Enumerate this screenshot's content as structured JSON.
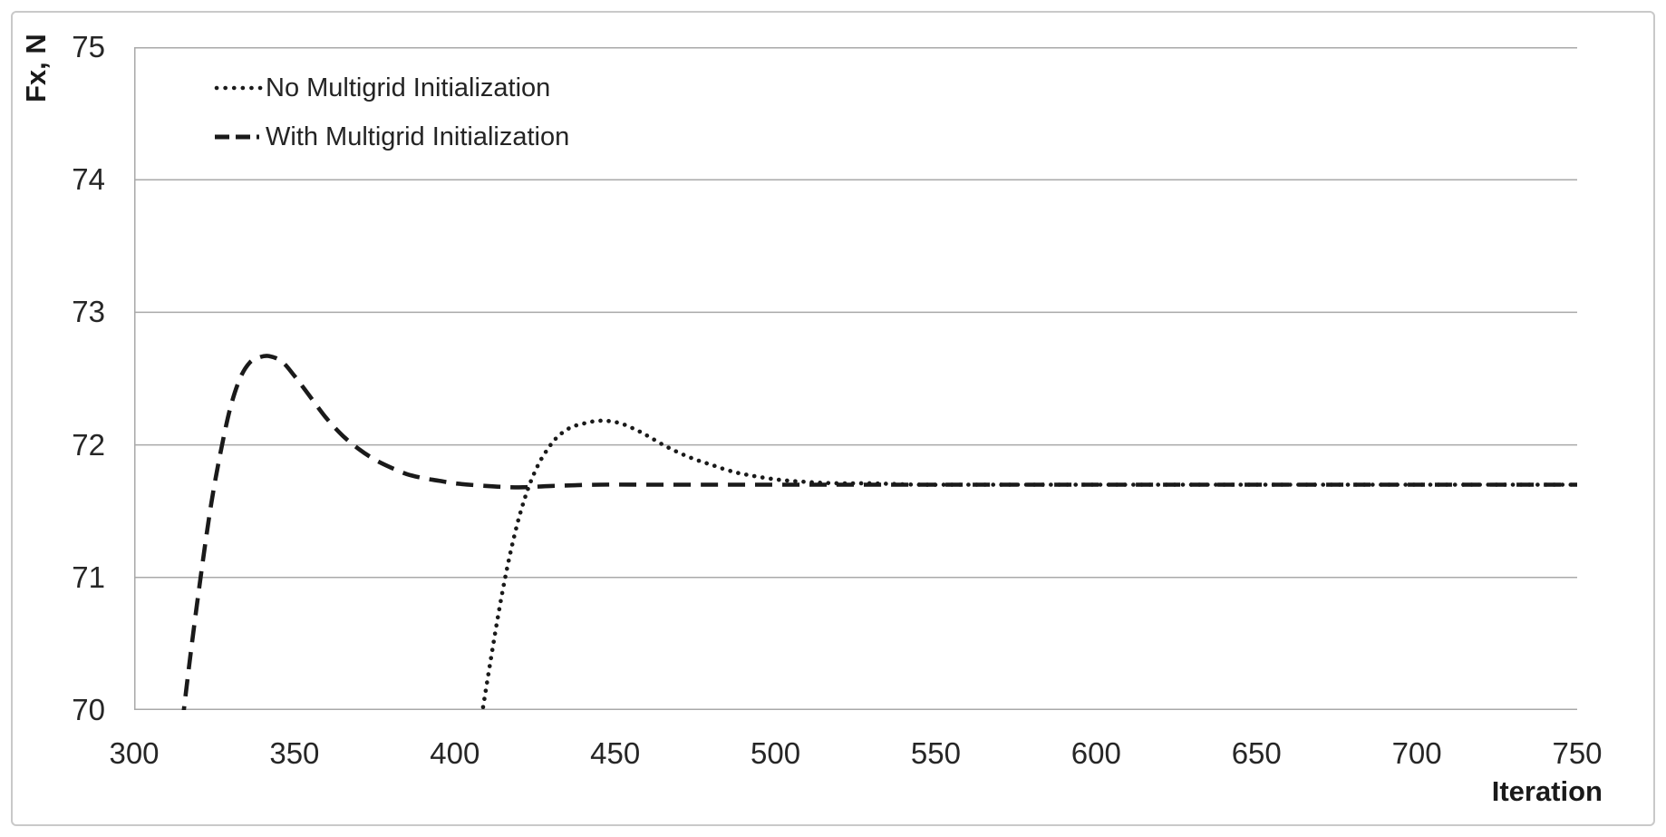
{
  "figure": {
    "background": "#ffffff",
    "border_color": "#c9c9c9"
  },
  "chart_data": {
    "type": "line",
    "title": "",
    "xlabel": "Iteration",
    "ylabel": "Fx, N",
    "xlim": [
      300,
      750
    ],
    "ylim": [
      70,
      75
    ],
    "xticks": [
      300,
      350,
      400,
      450,
      500,
      550,
      600,
      650,
      700,
      750
    ],
    "yticks": [
      75,
      74,
      73,
      72,
      71,
      70
    ],
    "grid": "horizontal-only",
    "grid_color": "#a9a9a9",
    "line_color": "#1a1a1a",
    "legend_position": "inside-top-left",
    "series": [
      {
        "name": "No Multigrid Initialization",
        "line_style": "dotted",
        "converged_value": 71.7,
        "x": [
          408,
          411,
          414,
          417,
          420,
          423,
          426,
          429,
          432,
          436,
          440,
          444,
          448,
          452,
          456,
          460,
          465,
          470,
          475,
          480,
          485,
          490,
          500,
          510,
          520,
          530,
          545,
          560,
          600,
          650,
          700,
          750
        ],
        "y": [
          69.9,
          70.35,
          70.78,
          71.15,
          71.45,
          71.68,
          71.85,
          71.97,
          72.06,
          72.13,
          72.16,
          72.18,
          72.18,
          72.16,
          72.12,
          72.07,
          72.0,
          71.94,
          71.89,
          71.85,
          71.81,
          71.78,
          71.74,
          71.72,
          71.71,
          71.71,
          71.7,
          71.7,
          71.7,
          71.7,
          71.7,
          71.7
        ]
      },
      {
        "name": "With Multigrid Initialization",
        "line_style": "dashed",
        "converged_value": 71.7,
        "x": [
          315,
          318,
          321,
          324,
          327,
          330,
          333,
          336,
          339,
          342,
          346,
          350,
          355,
          360,
          365,
          370,
          375,
          380,
          385,
          390,
          395,
          400,
          410,
          420,
          430,
          445,
          460,
          480,
          500,
          550,
          600,
          650,
          700,
          750
        ],
        "y": [
          69.9,
          70.5,
          71.05,
          71.55,
          71.95,
          72.28,
          72.5,
          72.62,
          72.66,
          72.67,
          72.63,
          72.52,
          72.36,
          72.2,
          72.07,
          71.97,
          71.89,
          71.83,
          71.78,
          71.75,
          71.73,
          71.71,
          71.69,
          71.68,
          71.69,
          71.7,
          71.7,
          71.7,
          71.7,
          71.7,
          71.7,
          71.7,
          71.7,
          71.7
        ]
      }
    ]
  }
}
